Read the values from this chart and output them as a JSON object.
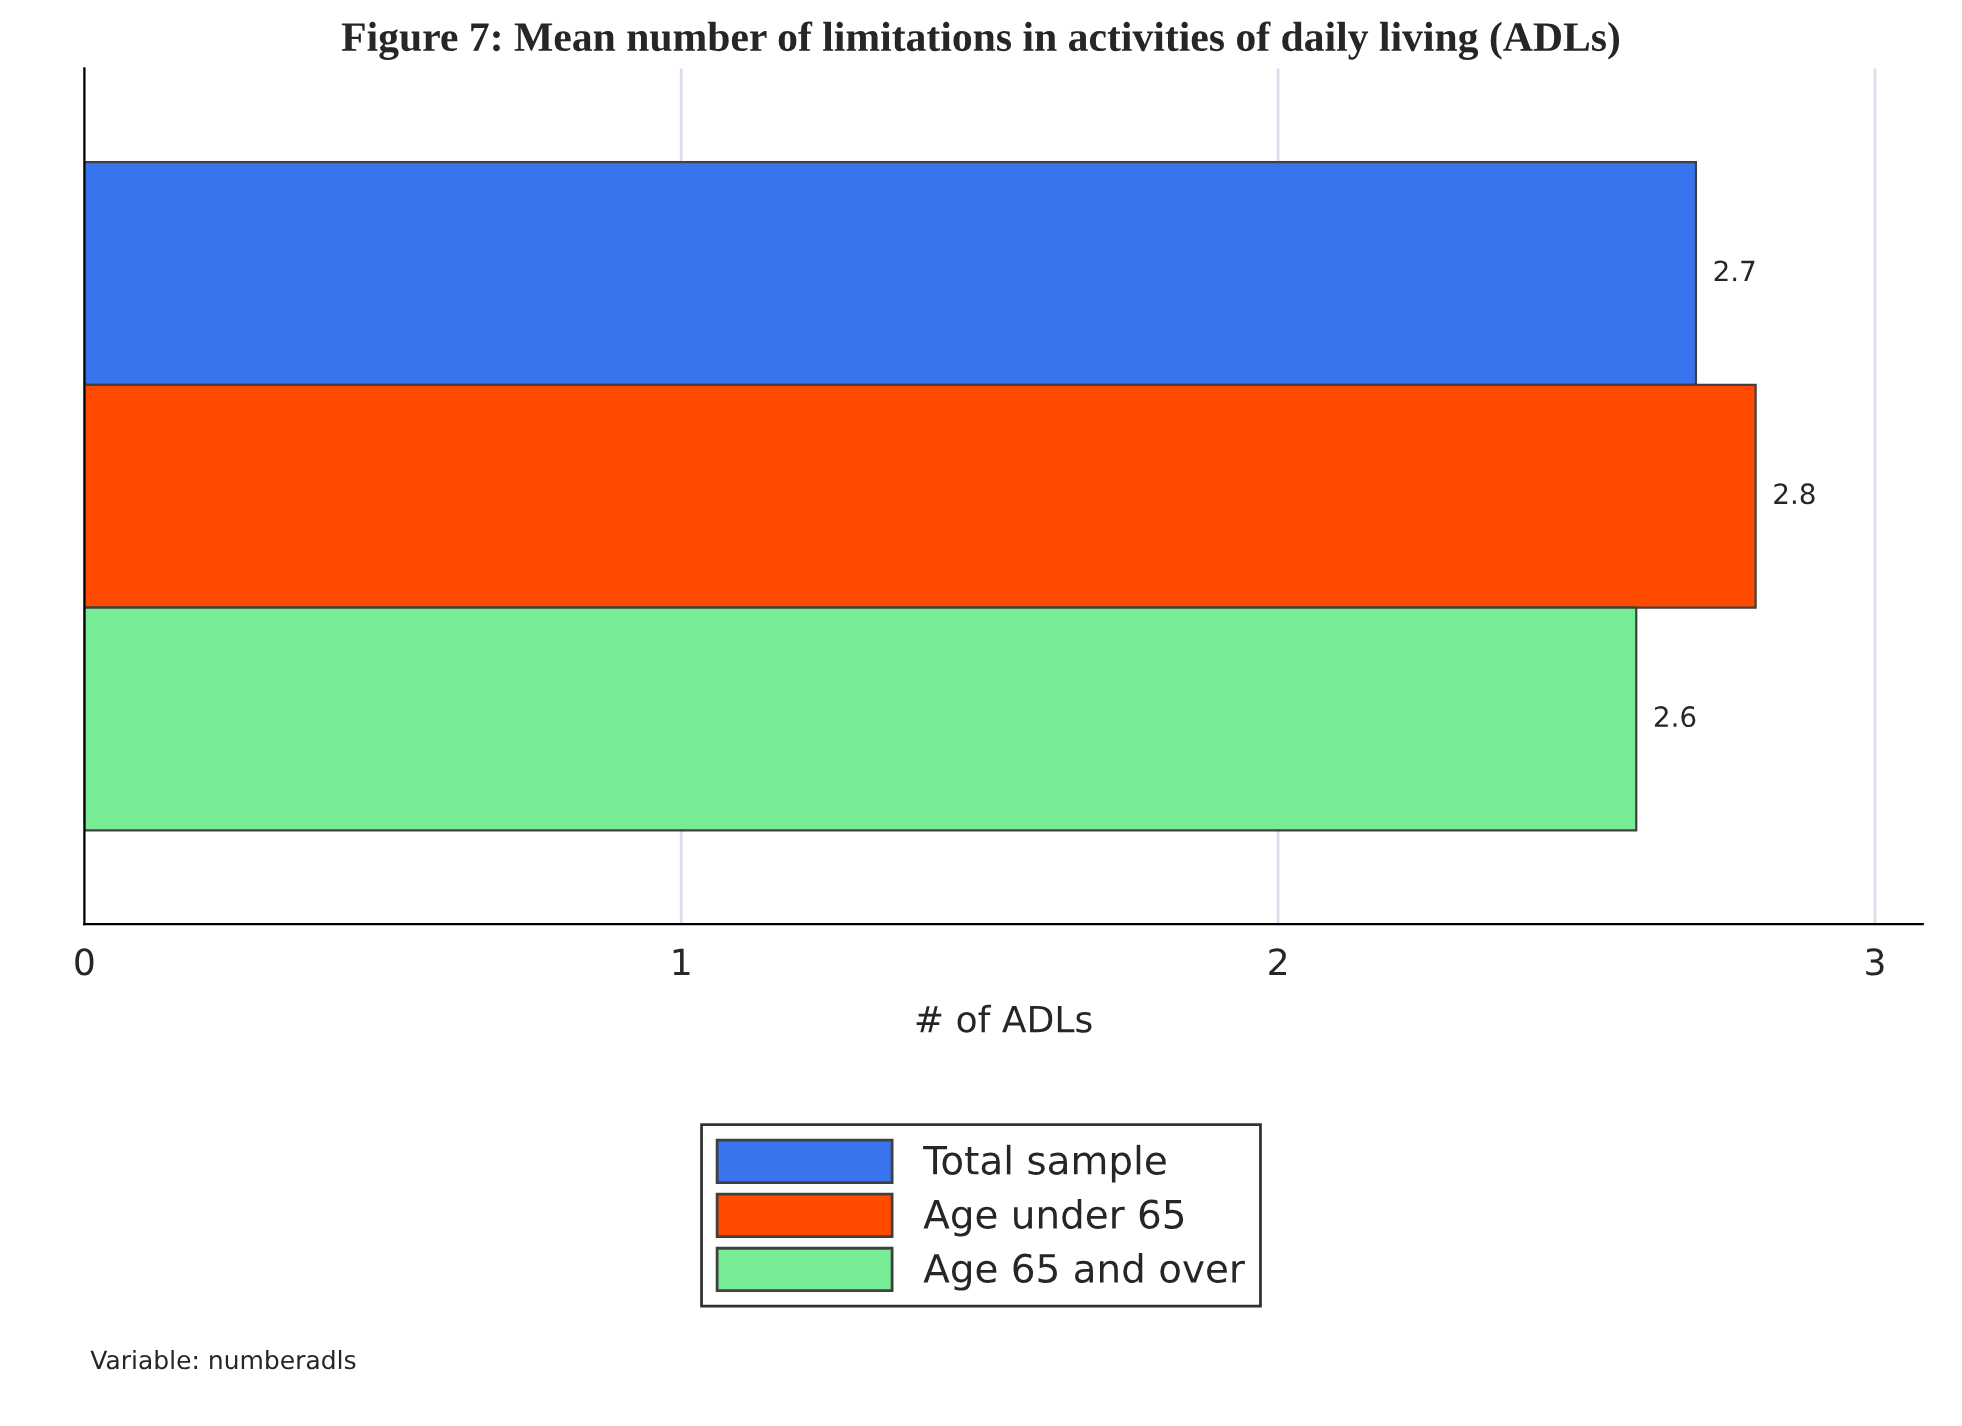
{
  "chart_data": {
    "type": "bar",
    "orientation": "horizontal",
    "title": "Figure 7: Mean number of limitations in activities of daily living (ADLs)",
    "xlabel": "# of ADLs",
    "categories": [
      null
    ],
    "series": [
      {
        "name": "Total sample",
        "color": "#3874ee",
        "values": [
          2.7
        ]
      },
      {
        "name": "Age under 65",
        "color": "#ff4a00",
        "values": [
          2.8
        ]
      },
      {
        "name": "Age 65 and over",
        "color": "#76ec94",
        "values": [
          2.6
        ]
      }
    ],
    "xlim": [
      0,
      3.08
    ],
    "xticks": [
      0,
      1,
      2,
      3
    ],
    "grid": "x",
    "data_labels": true,
    "legend": "bottom",
    "annotations": [
      "Variable: numberadls"
    ]
  }
}
